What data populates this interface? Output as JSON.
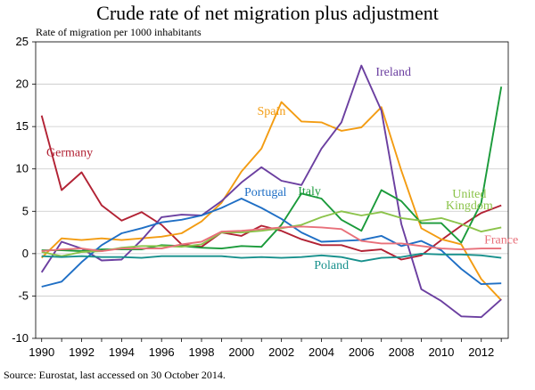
{
  "chart_data": {
    "type": "line",
    "title": "Crude rate of net migration plus adjustment",
    "ylabel": "Rate of migration per 1000 inhabitants",
    "xlabel": "",
    "ylim": [
      -10,
      25
    ],
    "xlim": [
      1990,
      2013
    ],
    "y_ticks": [
      -10,
      -5,
      0,
      5,
      10,
      15,
      20,
      25
    ],
    "x_ticks": [
      1990,
      1992,
      1994,
      1996,
      1998,
      2000,
      2002,
      2004,
      2006,
      2008,
      2010,
      2012
    ],
    "x": [
      1990,
      1991,
      1992,
      1993,
      1994,
      1995,
      1996,
      1997,
      1998,
      1999,
      2000,
      2001,
      2002,
      2003,
      2004,
      2005,
      2006,
      2007,
      2008,
      2009,
      2010,
      2011,
      2012,
      2013
    ],
    "grid": true,
    "series": [
      {
        "name": "Germany",
        "color": "#b22234",
        "label_lines": [
          "Germany"
        ],
        "values": [
          16.3,
          7.5,
          9.6,
          5.7,
          3.9,
          4.9,
          3.4,
          1.1,
          0.8,
          2.5,
          2.1,
          3.3,
          2.7,
          1.7,
          1.0,
          1.0,
          0.3,
          0.5,
          -0.7,
          -0.2,
          1.6,
          3.3,
          4.8,
          5.7
        ]
      },
      {
        "name": "Spain",
        "color": "#f39c12",
        "label_lines": [
          "Spain"
        ],
        "values": [
          -0.5,
          1.8,
          1.6,
          1.8,
          1.6,
          1.8,
          2.0,
          2.4,
          3.8,
          6.0,
          9.7,
          12.4,
          17.9,
          15.6,
          15.5,
          14.5,
          14.9,
          17.3,
          9.8,
          3.0,
          1.7,
          1.1,
          -3.0,
          -5.5
        ]
      },
      {
        "name": "Ireland",
        "color": "#6b3fa0",
        "label_lines": [
          "Ireland"
        ],
        "values": [
          -2.2,
          1.4,
          0.6,
          -0.8,
          -0.7,
          1.6,
          4.3,
          4.6,
          4.5,
          6.2,
          8.4,
          10.2,
          8.6,
          8.1,
          12.4,
          15.5,
          22.2,
          16.9,
          3.5,
          -4.2,
          -5.6,
          -7.4,
          -7.5,
          -5.4
        ]
      },
      {
        "name": "Italy",
        "color": "#1a9a3a",
        "label_lines": [
          "Italy"
        ],
        "values": [
          0.4,
          0.4,
          0.3,
          0.5,
          0.5,
          0.5,
          1.0,
          0.9,
          0.7,
          0.6,
          0.9,
          0.8,
          3.4,
          7.1,
          6.5,
          4.0,
          2.7,
          7.5,
          6.2,
          3.6,
          3.6,
          1.3,
          6.0,
          19.7
        ]
      },
      {
        "name": "Portugal",
        "color": "#1f6fc5",
        "label_lines": [
          "Portugal"
        ],
        "values": [
          -3.9,
          -3.3,
          -1.0,
          1.0,
          2.4,
          3.0,
          3.7,
          4.0,
          4.5,
          5.4,
          6.5,
          5.4,
          4.1,
          2.5,
          1.4,
          1.5,
          1.6,
          2.1,
          0.9,
          1.5,
          0.4,
          -1.8,
          -3.6,
          -3.5
        ]
      },
      {
        "name": "United Kingdom",
        "color": "#8bc34a",
        "label_lines": [
          "United",
          "Kingdom"
        ],
        "values": [
          0.2,
          -0.3,
          0.2,
          0.3,
          0.7,
          0.9,
          0.9,
          0.8,
          1.1,
          2.5,
          2.5,
          2.7,
          3.0,
          3.4,
          4.3,
          5.0,
          4.5,
          4.9,
          4.2,
          3.9,
          4.2,
          3.5,
          2.6,
          3.1
        ]
      },
      {
        "name": "France",
        "color": "#e8707a",
        "label_lines": [
          "France"
        ],
        "values": [
          0.3,
          0.5,
          0.6,
          0.3,
          0.6,
          0.6,
          0.6,
          1.1,
          1.4,
          2.6,
          2.7,
          2.9,
          3.1,
          3.2,
          3.1,
          2.9,
          1.5,
          1.2,
          1.2,
          0.9,
          0.6,
          0.5,
          0.6,
          0.6
        ]
      },
      {
        "name": "Poland",
        "color": "#17908c",
        "label_lines": [
          "Poland"
        ],
        "values": [
          -0.3,
          -0.4,
          -0.3,
          -0.4,
          -0.4,
          -0.5,
          -0.3,
          -0.3,
          -0.3,
          -0.3,
          -0.5,
          -0.4,
          -0.5,
          -0.4,
          -0.2,
          -0.4,
          -0.9,
          -0.5,
          -0.4,
          -0.0,
          -0.1,
          -0.1,
          -0.2,
          -0.5
        ]
      }
    ]
  },
  "source": "Source: Eurostat, last accessed on 30 October 2014."
}
